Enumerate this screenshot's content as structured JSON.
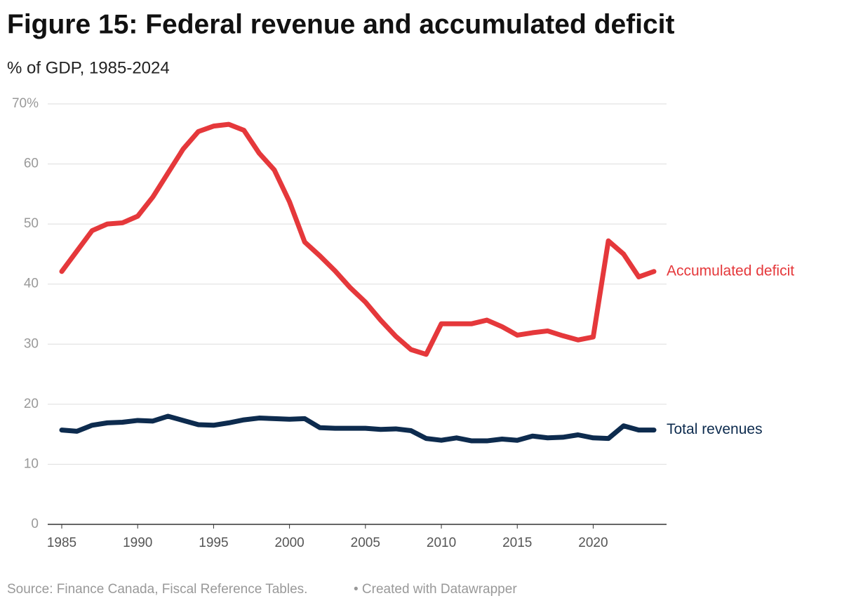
{
  "chart_data": {
    "type": "line",
    "title": "Figure 15: Federal revenue and accumulated deficit",
    "subtitle": "% of GDP, 1985-2024",
    "source": "Source: Finance Canada, Fiscal Reference Tables.",
    "credit": "• Created with Datawrapper",
    "x": [
      1985,
      1986,
      1987,
      1988,
      1989,
      1990,
      1991,
      1992,
      1993,
      1994,
      1995,
      1996,
      1997,
      1998,
      1999,
      2000,
      2001,
      2002,
      2003,
      2004,
      2005,
      2006,
      2007,
      2008,
      2009,
      2010,
      2011,
      2012,
      2013,
      2014,
      2015,
      2016,
      2017,
      2018,
      2019,
      2020,
      2021,
      2022,
      2023,
      2024
    ],
    "xlim": [
      1985,
      2024
    ],
    "xticks": [
      1985,
      1990,
      1995,
      2000,
      2005,
      2010,
      2015,
      2020
    ],
    "ylim": [
      0,
      70
    ],
    "yticks": [
      0,
      10,
      20,
      30,
      40,
      50,
      60,
      {
        "value": 70,
        "label": "70%"
      }
    ],
    "grid": true,
    "series": [
      {
        "name": "Accumulated deficit",
        "color": "#e5383b",
        "values": [
          42.1,
          45.5,
          48.9,
          50.0,
          50.2,
          51.3,
          54.5,
          58.5,
          62.5,
          65.4,
          66.3,
          66.6,
          65.6,
          61.8,
          59.0,
          53.7,
          47.0,
          44.7,
          42.2,
          39.4,
          37.0,
          34.0,
          31.3,
          29.1,
          28.3,
          33.4,
          33.4,
          33.4,
          34.0,
          32.9,
          31.5,
          31.9,
          32.2,
          31.4,
          30.7,
          31.2,
          47.2,
          45.0,
          41.2,
          42.1
        ]
      },
      {
        "name": "Total revenues",
        "color": "#0d2b4e",
        "values": [
          15.7,
          15.5,
          16.5,
          16.9,
          17.0,
          17.3,
          17.2,
          18.0,
          17.3,
          16.6,
          16.5,
          16.9,
          17.4,
          17.7,
          17.6,
          17.5,
          17.6,
          16.1,
          16.0,
          16.0,
          16.0,
          15.8,
          15.9,
          15.6,
          14.3,
          14.0,
          14.4,
          13.9,
          13.9,
          14.2,
          14.0,
          14.7,
          14.4,
          14.5,
          14.9,
          14.4,
          14.3,
          16.4,
          15.7,
          15.7
        ]
      }
    ]
  }
}
